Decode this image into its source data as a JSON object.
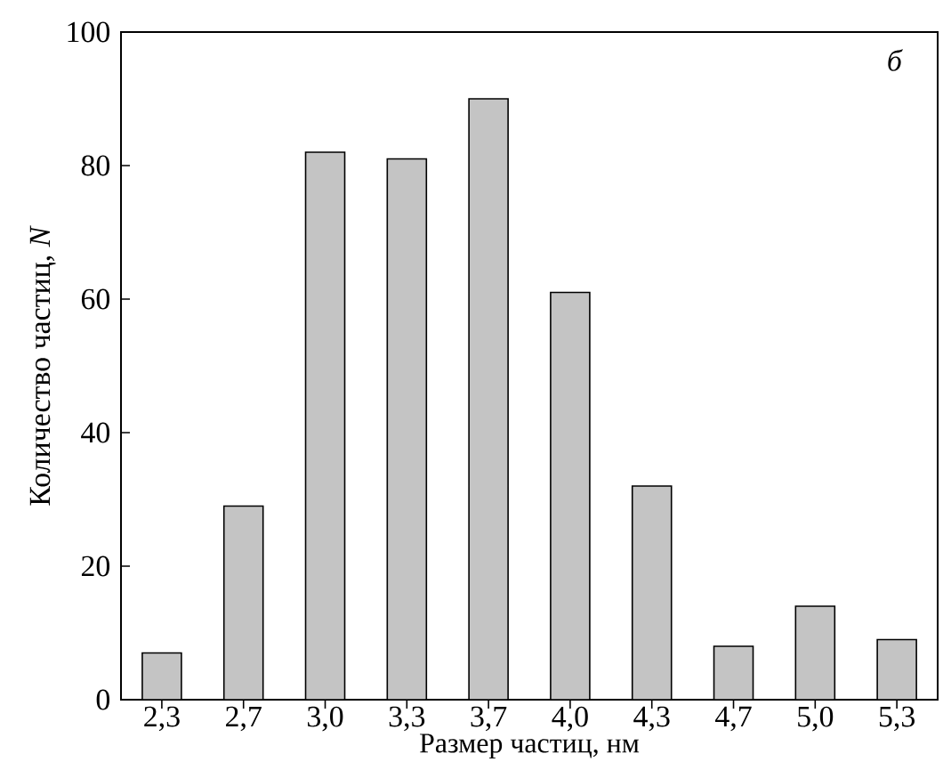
{
  "chart_data": {
    "type": "bar",
    "xlabel": "Размер частиц, нм",
    "ylabel": "Количество частиц, *N*",
    "categories": [
      "2,3",
      "2,7",
      "3,0",
      "3,3",
      "3,7",
      "4,0",
      "4,3",
      "4,7",
      "5,0",
      "5,3"
    ],
    "values": [
      7,
      29,
      82,
      81,
      90,
      61,
      32,
      8,
      14,
      9
    ],
    "color": "#c4c4c4",
    "ylim": [
      0,
      100
    ],
    "yticks": [
      0,
      20,
      40,
      60,
      80,
      100
    ],
    "grid": false,
    "annotations": [
      "*б*"
    ]
  }
}
